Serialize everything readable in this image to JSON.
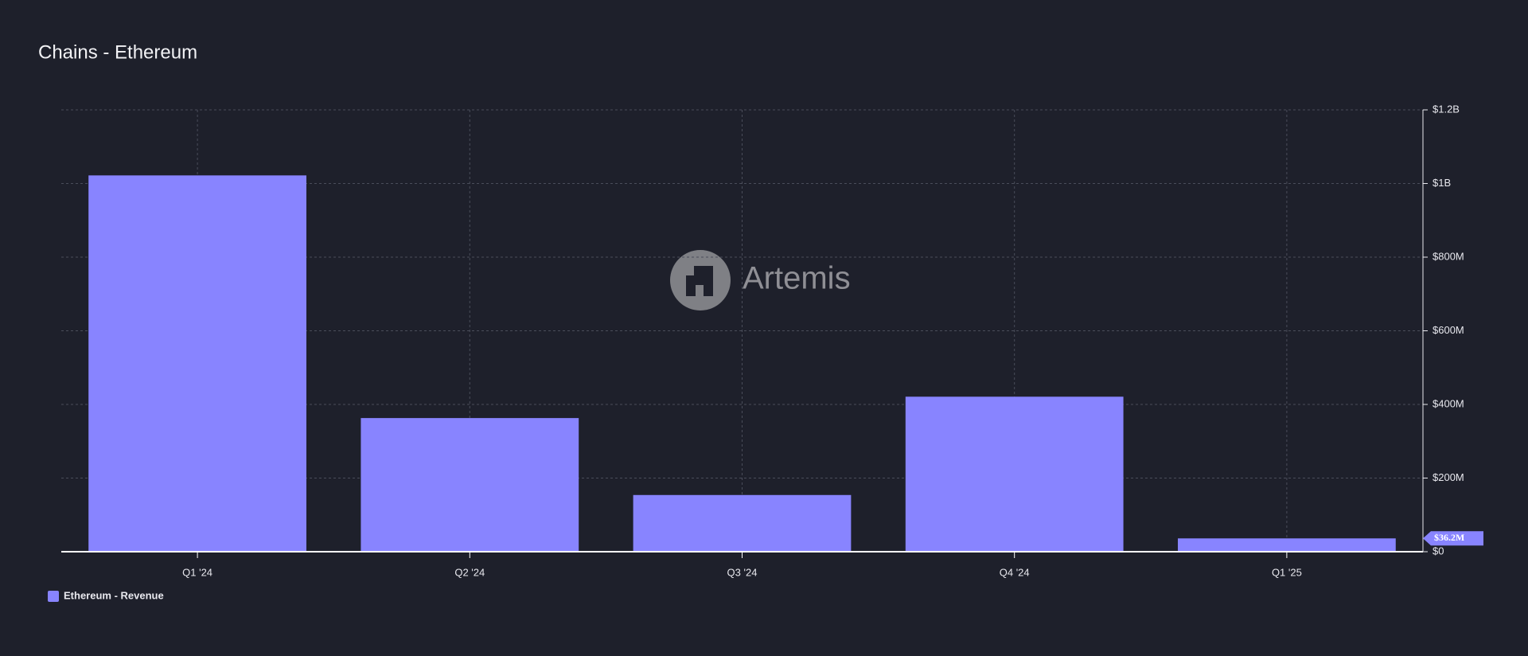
{
  "chart_data": {
    "type": "bar",
    "title": "Chains - Ethereum",
    "watermark": "Artemis",
    "categories": [
      "Q1 '24",
      "Q2 '24",
      "Q3 '24",
      "Q4 '24",
      "Q1 '25"
    ],
    "series": [
      {
        "name": "Ethereum - Revenue",
        "color": "#8884ff",
        "values": [
          1022000000,
          363000000,
          154000000,
          421000000,
          36200000
        ],
        "value_labels": [
          null,
          null,
          null,
          null,
          "$36.2M"
        ]
      }
    ],
    "ylim": [
      0,
      1200000000
    ],
    "yticks": [
      {
        "value": 0,
        "label": "$0"
      },
      {
        "value": 200000000,
        "label": "$200M"
      },
      {
        "value": 400000000,
        "label": "$400M"
      },
      {
        "value": 600000000,
        "label": "$600M"
      },
      {
        "value": 800000000,
        "label": "$800M"
      },
      {
        "value": 1000000000,
        "label": "$1B"
      },
      {
        "value": 1200000000,
        "label": "$1.2B"
      }
    ],
    "grid": true,
    "y_axis_side": "right",
    "legend": "bottom-left"
  }
}
